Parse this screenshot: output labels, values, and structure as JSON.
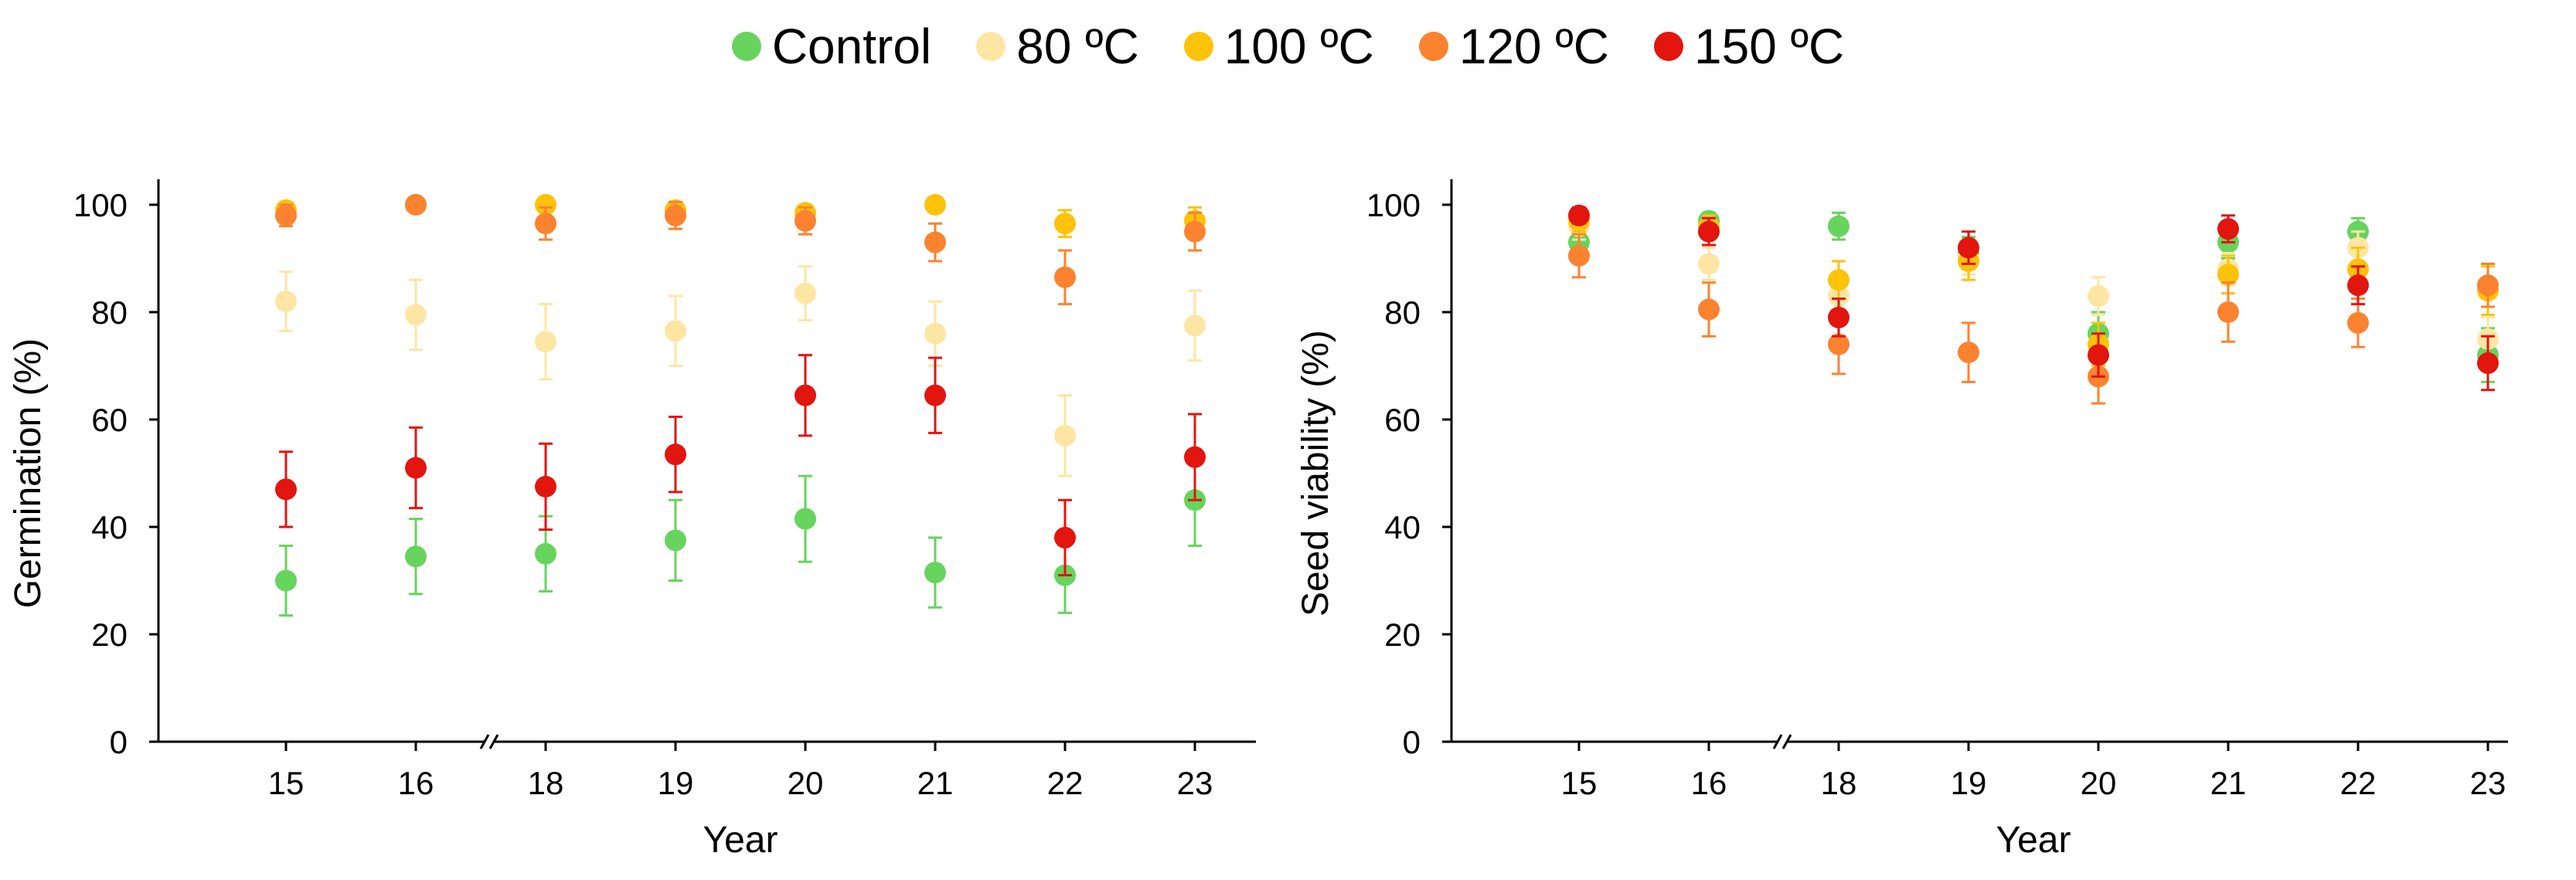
{
  "legend": [
    {
      "label": "Control",
      "color": "#66d45d"
    },
    {
      "label": "80 ºC",
      "color": "#fde6a3"
    },
    {
      "label": "100 ºC",
      "color": "#fdc20a"
    },
    {
      "label": "120 ºC",
      "color": "#fb8330"
    },
    {
      "label": "150 ºC",
      "color": "#e2150f"
    }
  ],
  "chart_data": [
    {
      "type": "scatter",
      "title": "",
      "xlabel": "Year",
      "ylabel": "Germination (%)",
      "categories": [
        "15",
        "16",
        "18",
        "19",
        "20",
        "21",
        "22",
        "23"
      ],
      "ylim": [
        0,
        100
      ],
      "yticks": [
        "0",
        "20",
        "40",
        "60",
        "80",
        "100"
      ],
      "axis_break": "between 16 and 18",
      "series": [
        {
          "name": "Control",
          "color": "#66d45d",
          "values": [
            30,
            34.5,
            35,
            37.5,
            41.5,
            31.5,
            31,
            45
          ],
          "errors": [
            6.5,
            7,
            7,
            7.5,
            8,
            6.5,
            7,
            8.5
          ]
        },
        {
          "name": "80 ºC",
          "color": "#fde6a3",
          "values": [
            82,
            79.5,
            74.5,
            76.5,
            83.5,
            76,
            57,
            77.5
          ],
          "errors": [
            5.5,
            6.5,
            7,
            6.5,
            5,
            6,
            7.5,
            6.5
          ]
        },
        {
          "name": "100 ºC",
          "color": "#fdc20a",
          "values": [
            99,
            100,
            100,
            99,
            98.5,
            100,
            96.5,
            97
          ],
          "errors": [
            1,
            0.5,
            0.5,
            1,
            1.5,
            0.5,
            2.5,
            2.5
          ]
        },
        {
          "name": "120 ºC",
          "color": "#fb8330",
          "values": [
            98,
            100,
            96.5,
            98,
            97,
            93,
            86.5,
            95
          ],
          "errors": [
            2,
            0.5,
            3,
            2.5,
            2.5,
            3.5,
            5,
            3.5
          ]
        },
        {
          "name": "150 ºC",
          "color": "#e2150f",
          "values": [
            47,
            51,
            47.5,
            53.5,
            64.5,
            64.5,
            38,
            53
          ],
          "errors": [
            7,
            7.5,
            8,
            7,
            7.5,
            7,
            7,
            8
          ]
        }
      ]
    },
    {
      "type": "scatter",
      "title": "",
      "xlabel": "Year",
      "ylabel": "Seed viability (%)",
      "categories": [
        "15",
        "16",
        "18",
        "19",
        "20",
        "21",
        "22",
        "23"
      ],
      "ylim": [
        0,
        100
      ],
      "yticks": [
        "0",
        "20",
        "40",
        "60",
        "80",
        "100"
      ],
      "axis_break": "between 16 and 18",
      "series": [
        {
          "name": "Control",
          "color": "#66d45d",
          "values": [
            93,
            97,
            96,
            91,
            76,
            93,
            95,
            72
          ],
          "errors": [
            2,
            1.5,
            2.5,
            3,
            4,
            3,
            2.5,
            5
          ]
        },
        {
          "name": "80 ºC",
          "color": "#fde6a3",
          "values": [
            96,
            89,
            83,
            90,
            83,
            88,
            92,
            75
          ],
          "errors": [
            2.5,
            3,
            3.5,
            3,
            3.5,
            3,
            3,
            4
          ]
        },
        {
          "name": "100 ºC",
          "color": "#fdc20a",
          "values": [
            97,
            96,
            86,
            89.5,
            74,
            87,
            88,
            84
          ],
          "errors": [
            2,
            2,
            3.5,
            3.5,
            4,
            3.5,
            4,
            4.5
          ]
        },
        {
          "name": "120 ºC",
          "color": "#fb8330",
          "values": [
            90.5,
            80.5,
            74,
            72.5,
            68,
            80,
            78,
            85
          ],
          "errors": [
            4,
            5,
            5.5,
            5.5,
            5,
            5.5,
            4.5,
            4
          ]
        },
        {
          "name": "150 ºC",
          "color": "#e2150f",
          "values": [
            98,
            95,
            79,
            92,
            72,
            95.5,
            85,
            70.5
          ],
          "errors": [
            1.5,
            2.5,
            3.5,
            3,
            4,
            2.5,
            3.5,
            5
          ]
        }
      ]
    }
  ]
}
